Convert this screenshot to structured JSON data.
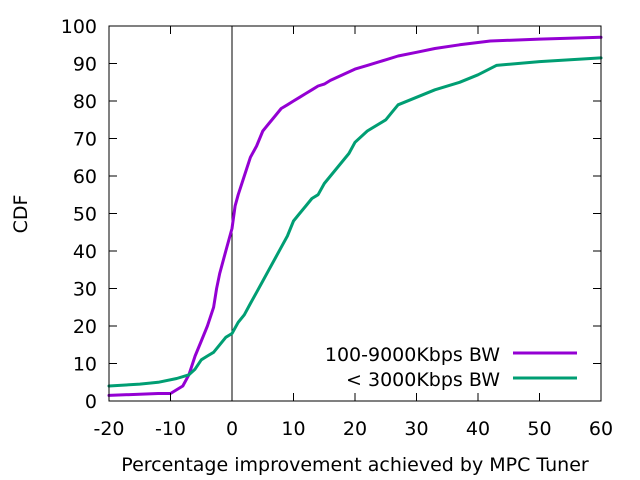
{
  "chart_data": {
    "type": "line",
    "xlabel": "Percentage improvement achieved by MPC Tuner",
    "ylabel": "CDF",
    "xlim": [
      -20,
      60
    ],
    "ylim": [
      0,
      100
    ],
    "x_ticks": [
      -20,
      -10,
      0,
      10,
      20,
      30,
      40,
      50,
      60
    ],
    "y_ticks": [
      0,
      10,
      20,
      30,
      40,
      50,
      60,
      70,
      80,
      90,
      100
    ],
    "grid": false,
    "legend_position": "bottom-right",
    "reference_lines": [
      {
        "axis": "x",
        "value": 0,
        "color": "#000000"
      }
    ],
    "series": [
      {
        "name": "100-9000Kbps BW",
        "color": "#9400d3",
        "x": [
          -20,
          -12,
          -10,
          -8,
          -7,
          -6,
          -5,
          -4,
          -3,
          -2.5,
          -2,
          -1,
          0,
          0.5,
          1,
          2,
          3,
          4,
          5,
          6,
          7,
          8,
          9,
          10,
          11,
          12,
          13,
          14,
          15,
          16,
          18,
          20,
          22,
          25,
          27,
          30,
          33,
          37,
          42,
          50,
          60
        ],
        "y": [
          1.5,
          2,
          2,
          4,
          7,
          12,
          16,
          20,
          25,
          30,
          34,
          40,
          46,
          52,
          55,
          60,
          65,
          68,
          72,
          74,
          76,
          78,
          79,
          80,
          81,
          82,
          83,
          84,
          84.5,
          85.5,
          87,
          88.5,
          89.5,
          91,
          92,
          93,
          94,
          95,
          96,
          96.5,
          97
        ]
      },
      {
        "name": "< 3000Kbps BW",
        "color": "#009e73",
        "x": [
          -20,
          -15,
          -12,
          -9,
          -7,
          -6,
          -5,
          -4,
          -3,
          -2,
          -1,
          0,
          1,
          2,
          3,
          4,
          5,
          6,
          7,
          8,
          9,
          10,
          11,
          12,
          13,
          14,
          15,
          17,
          19,
          20,
          22,
          25,
          26,
          27,
          30,
          33,
          37,
          40,
          43,
          50,
          60
        ],
        "y": [
          4,
          4.5,
          5,
          6,
          7,
          8.5,
          11,
          12,
          13,
          15,
          17,
          18,
          21,
          23,
          26,
          29,
          32,
          35,
          38,
          41,
          44,
          48,
          50,
          52,
          54,
          55,
          58,
          62,
          66,
          69,
          72,
          75,
          77,
          79,
          81,
          83,
          85,
          87,
          89.5,
          90.5,
          91.5
        ]
      }
    ]
  }
}
